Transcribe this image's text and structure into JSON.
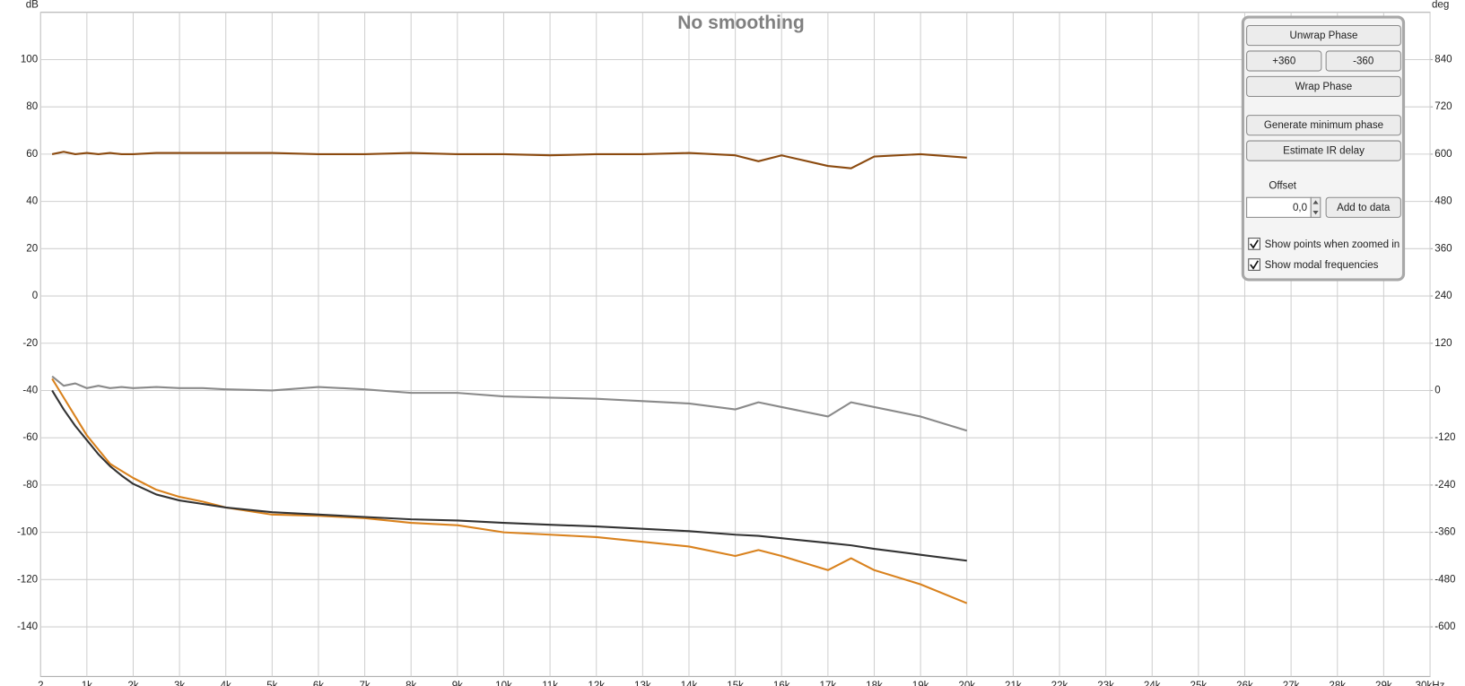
{
  "chart_data": {
    "type": "line",
    "title": "No smoothing",
    "ylabel": "dB",
    "y2label": "deg",
    "x": [
      250,
      500,
      750,
      1000,
      1250,
      1500,
      1750,
      2000,
      2500,
      3000,
      3500,
      4000,
      5000,
      6000,
      7000,
      8000,
      9000,
      10000,
      11000,
      12000,
      13000,
      14000,
      15000,
      15500,
      16000,
      17000,
      17500,
      18000,
      19000,
      20000
    ],
    "series": [
      {
        "color": "#8b4a0f",
        "values": [
          60,
          61,
          60,
          60.5,
          60,
          60.5,
          60,
          60,
          60.5,
          60.5,
          60.5,
          60.5,
          60.5,
          60,
          60,
          60.5,
          60,
          60,
          59.5,
          60,
          60,
          60.5,
          59.5,
          57,
          59.5,
          55,
          54,
          59,
          60,
          58.5
        ]
      },
      {
        "color": "#8a8a8a",
        "values": [
          -34,
          -38,
          -37,
          -39,
          -38,
          -39,
          -38.5,
          -39,
          -38.5,
          -39,
          -39,
          -39.5,
          -40,
          -38.5,
          -39.5,
          -41,
          -41,
          -42.5,
          -43,
          -43.5,
          -44.5,
          -45.5,
          -48,
          -45,
          -47,
          -51,
          -45,
          -47,
          -51,
          -57
        ]
      },
      {
        "color": "#d9821e",
        "values": [
          -35,
          -43,
          -51,
          -59,
          -65,
          -71,
          -74,
          -77,
          -82,
          -85,
          -87,
          -89.5,
          -92.5,
          -93,
          -94,
          -96,
          -97,
          -100,
          -101,
          -102,
          -104,
          -106,
          -110,
          -107.5,
          -110,
          -116,
          -111,
          -116,
          -122,
          -130
        ]
      },
      {
        "color": "#333333",
        "values": [
          -40,
          -48,
          -55,
          -61,
          -67,
          -72,
          -76,
          -79.5,
          -84,
          -86.5,
          -88,
          -89.5,
          -91.5,
          -92.5,
          -93.5,
          -94.5,
          -95,
          -96,
          -96.8,
          -97.5,
          -98.5,
          -99.5,
          -101,
          -101.5,
          -102.5,
          -104.5,
          -105.5,
          -107,
          -109.5,
          -112
        ]
      }
    ],
    "xlim": [
      2,
      30000
    ],
    "xticks": [
      {
        "value": 2,
        "label": "2"
      },
      {
        "value": 1000,
        "label": "1k"
      },
      {
        "value": 2000,
        "label": "2k"
      },
      {
        "value": 3000,
        "label": "3k"
      },
      {
        "value": 4000,
        "label": "4k"
      },
      {
        "value": 5000,
        "label": "5k"
      },
      {
        "value": 6000,
        "label": "6k"
      },
      {
        "value": 7000,
        "label": "7k"
      },
      {
        "value": 8000,
        "label": "8k"
      },
      {
        "value": 9000,
        "label": "9k"
      },
      {
        "value": 10000,
        "label": "10k"
      },
      {
        "value": 11000,
        "label": "11k"
      },
      {
        "value": 12000,
        "label": "12k"
      },
      {
        "value": 13000,
        "label": "13k"
      },
      {
        "value": 14000,
        "label": "14k"
      },
      {
        "value": 15000,
        "label": "15k"
      },
      {
        "value": 16000,
        "label": "16k"
      },
      {
        "value": 17000,
        "label": "17k"
      },
      {
        "value": 18000,
        "label": "18k"
      },
      {
        "value": 19000,
        "label": "19k"
      },
      {
        "value": 20000,
        "label": "20k"
      },
      {
        "value": 21000,
        "label": "21k"
      },
      {
        "value": 22000,
        "label": "22k"
      },
      {
        "value": 23000,
        "label": "23k"
      },
      {
        "value": 24000,
        "label": "24k"
      },
      {
        "value": 25000,
        "label": "25k"
      },
      {
        "value": 26000,
        "label": "26k"
      },
      {
        "value": 27000,
        "label": "27k"
      },
      {
        "value": 28000,
        "label": "28k"
      },
      {
        "value": 29000,
        "label": "29k"
      },
      {
        "value": 30000,
        "label": "30kHz"
      }
    ],
    "ylim": [
      -161,
      120
    ],
    "yticks": [
      100,
      80,
      60,
      40,
      20,
      0,
      -20,
      -40,
      -60,
      -80,
      -100,
      -120,
      -140
    ],
    "y2lim": [
      -726,
      960
    ],
    "y2ticks": [
      840,
      720,
      600,
      480,
      360,
      240,
      120,
      0,
      -120,
      -240,
      -360,
      -480,
      -600
    ],
    "grid": true
  },
  "panel": {
    "buttons": [
      "Unwrap Phase",
      "+360",
      "-360",
      "Wrap Phase",
      "Generate minimum phase",
      "Estimate IR delay"
    ],
    "offset_label": "Offset",
    "offset_value": "0,0",
    "add_button": "Add to data",
    "checkboxes": [
      {
        "label": "Show points when zoomed in",
        "checked": true
      },
      {
        "label": "Show modal frequencies",
        "checked": true
      }
    ]
  }
}
